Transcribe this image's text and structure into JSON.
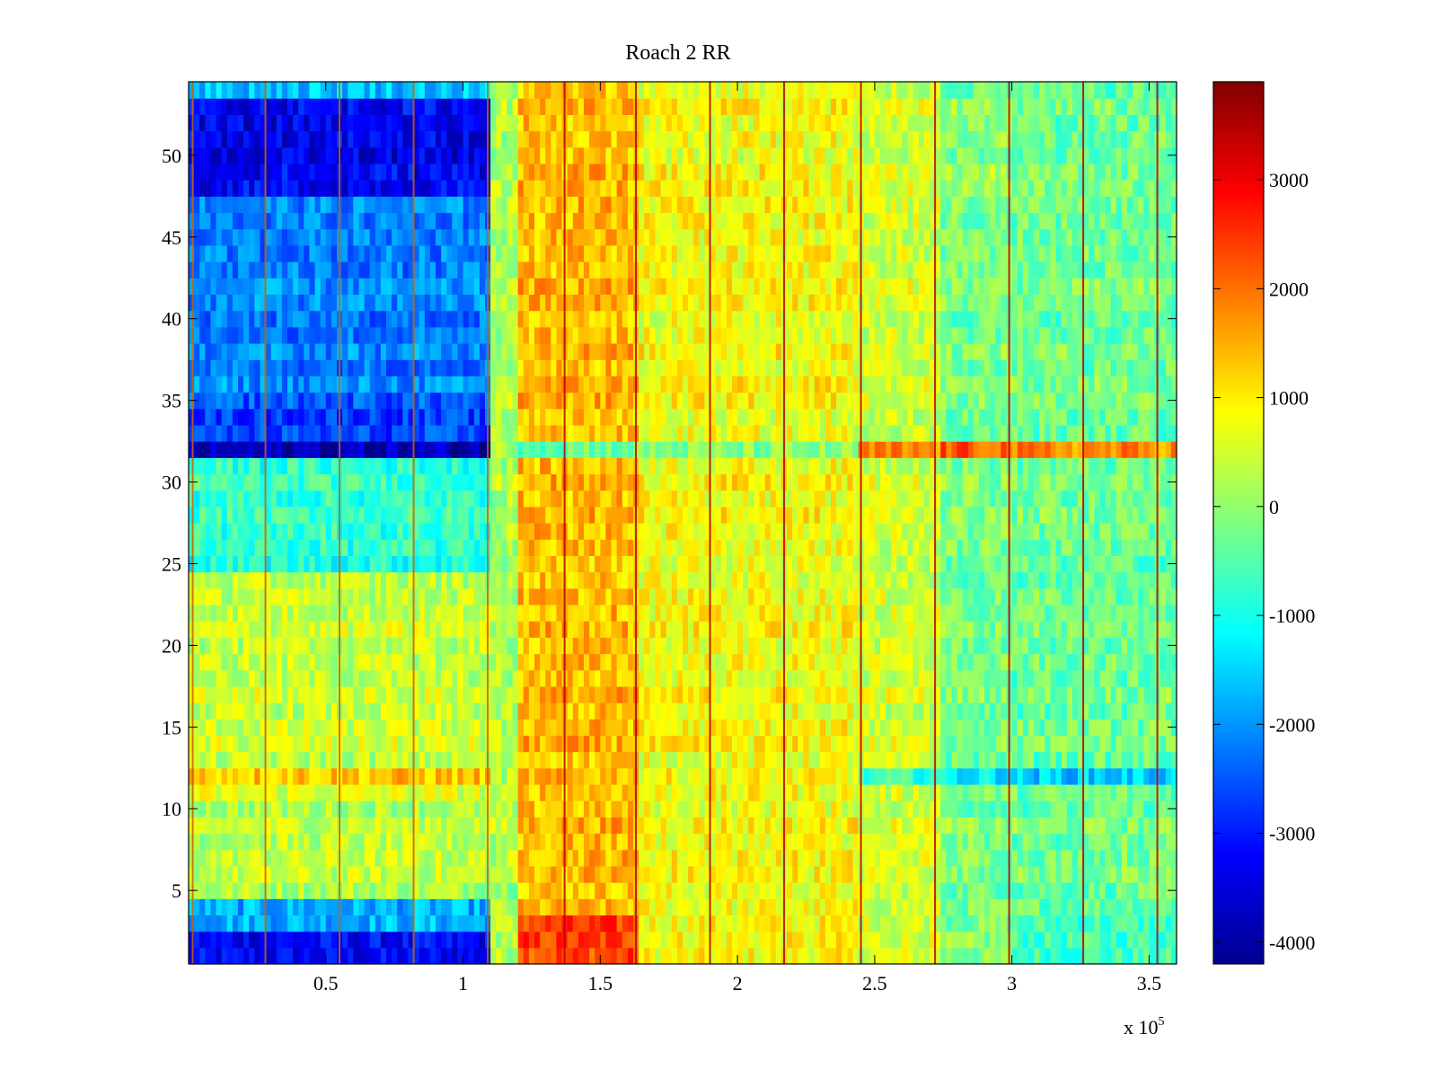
{
  "chart_data": {
    "type": "heatmap",
    "title": "Roach 2 RR",
    "xlabel": "",
    "ylabel": "",
    "x_exponent_label": "x 10",
    "x_exponent_power": "5",
    "xlim": [
      0,
      3.6
    ],
    "ylim": [
      0.5,
      54.5
    ],
    "x_ticks": [
      0.5,
      1,
      1.5,
      2,
      2.5,
      3,
      3.5
    ],
    "x_tick_labels": [
      "0.5",
      "1",
      "1.5",
      "2",
      "2.5",
      "3",
      "3.5"
    ],
    "y_ticks": [
      5,
      10,
      15,
      20,
      25,
      30,
      35,
      40,
      45,
      50
    ],
    "y_tick_labels": [
      "5",
      "10",
      "15",
      "20",
      "25",
      "30",
      "35",
      "40",
      "45",
      "50"
    ],
    "colormap": "jet",
    "colorbar": {
      "clim": [
        -4200,
        3900
      ],
      "ticks": [
        -4000,
        -3000,
        -2000,
        -1000,
        0,
        1000,
        2000,
        3000
      ],
      "tick_labels": [
        "-4000",
        "-3000",
        "-2000",
        "-1000",
        "0",
        "1000",
        "2000",
        "3000"
      ]
    },
    "time_segments": [
      {
        "x_start": 0.0,
        "x_end": 1.1,
        "rows_1_2": -3300,
        "rows_3_4": -1800,
        "rows_5_10": 300,
        "row_11": 600,
        "row_12": 1300,
        "rows_13_24": 400,
        "rows_25_31": -800,
        "row_32": -3700,
        "rows_33_35": -2600,
        "rows_36_43": -2200,
        "rows_44_47": -2200,
        "rows_48_53": -3300,
        "row_54": -1500
      },
      {
        "x_start": 1.1,
        "x_end": 1.2,
        "typical_value": 200
      },
      {
        "x_start": 1.2,
        "x_end": 1.65,
        "typical_value": 1400,
        "row_32": -200,
        "rows_1_3": 2300
      },
      {
        "x_start": 1.65,
        "x_end": 2.45,
        "typical_value": 800,
        "row_32": -100
      },
      {
        "x_start": 2.45,
        "x_end": 2.75,
        "typical_value": 500,
        "row_32": 1800,
        "row_12": -800
      },
      {
        "x_start": 2.75,
        "x_end": 3.0,
        "typical_value": -200,
        "row_32": 2200,
        "row_12": -1300,
        "rows_48_53": 0
      },
      {
        "x_start": 3.0,
        "x_end": 3.6,
        "typical_value": -300,
        "row_32": 1800,
        "row_12": -1600,
        "rows_1_3": -700
      }
    ],
    "vertical_spike_x": [
      0.015,
      0.28,
      0.55,
      0.82,
      1.09,
      1.37,
      1.63,
      1.9,
      2.17,
      2.45,
      2.72,
      2.99,
      3.26,
      3.53
    ]
  }
}
